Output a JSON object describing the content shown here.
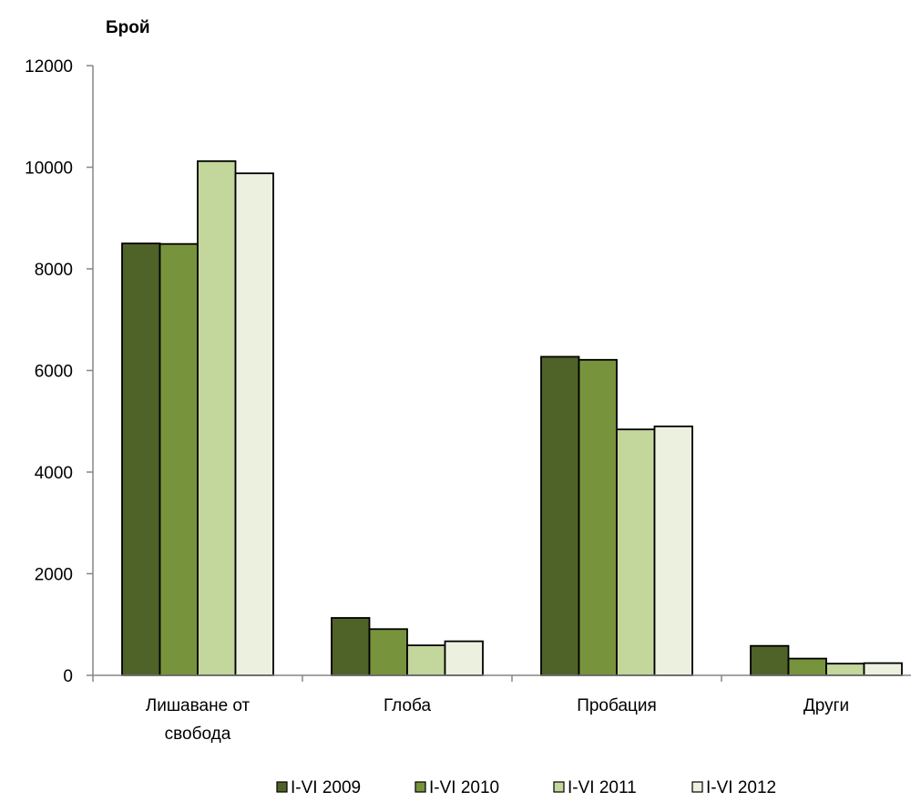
{
  "chart_data": {
    "type": "bar",
    "title": "",
    "xlabel": "",
    "ylabel": "Брой",
    "ylim": [
      0,
      12000
    ],
    "yticks": [
      0,
      2000,
      4000,
      6000,
      8000,
      10000,
      12000
    ],
    "grid": false,
    "legend_position": "bottom",
    "categories": [
      [
        "Лишаване от",
        "свобода"
      ],
      [
        "Глоба"
      ],
      [
        "Пробация"
      ],
      [
        "Други"
      ]
    ],
    "series": [
      {
        "name": "I-VI 2009",
        "color": "#4f6228",
        "values": [
          8500,
          1130,
          6270,
          580
        ]
      },
      {
        "name": "I-VI 2010",
        "color": "#77933c",
        "values": [
          8490,
          910,
          6210,
          330
        ]
      },
      {
        "name": "I-VI 2011",
        "color": "#c3d69b",
        "values": [
          10120,
          590,
          4840,
          230
        ]
      },
      {
        "name": "I-VI 2012",
        "color": "#ebf1de",
        "values": [
          9880,
          670,
          4900,
          240
        ]
      }
    ]
  }
}
